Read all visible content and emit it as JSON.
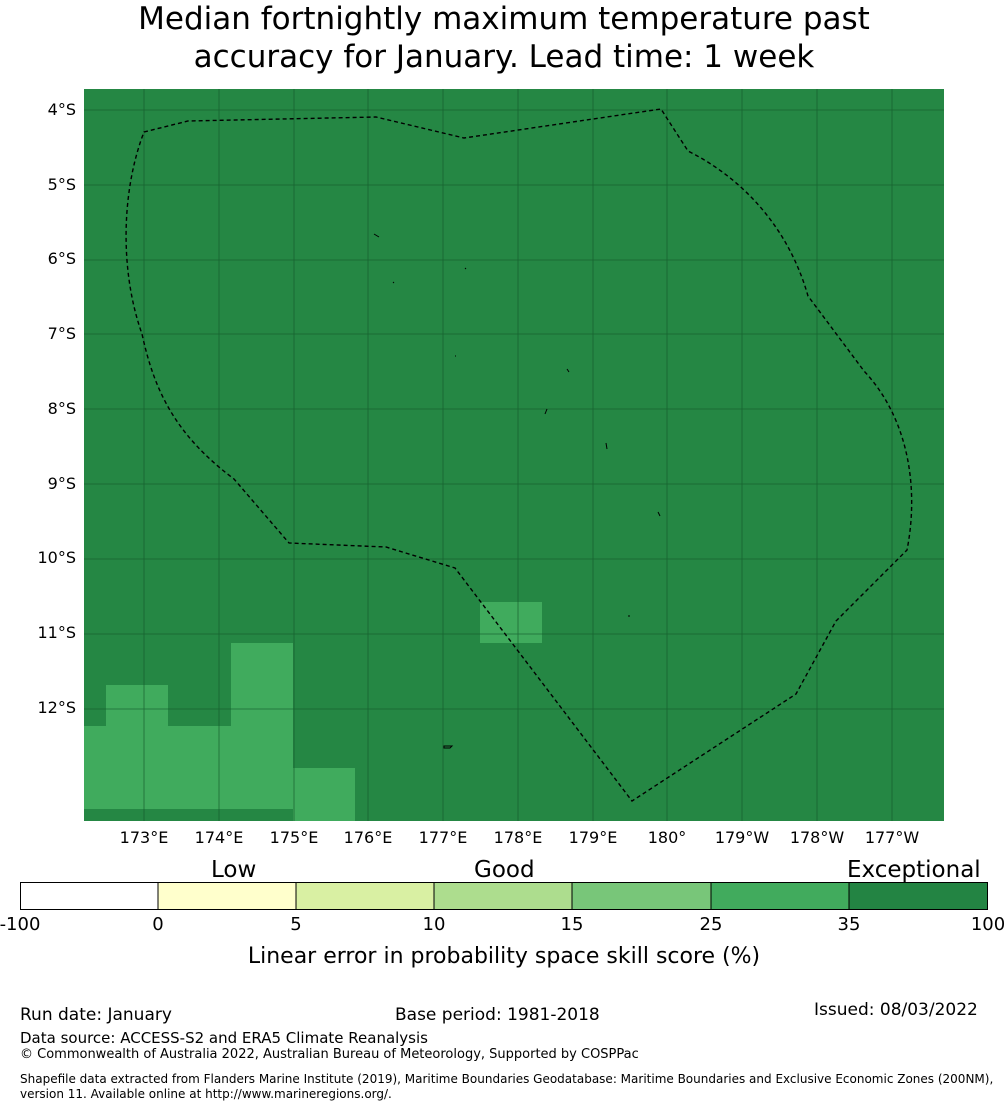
{
  "title": {
    "line1": "Median fortnightly maximum temperature past",
    "line2": "accuracy for January. Lead time: 1 week"
  },
  "map": {
    "lat_labels": [
      "4°S",
      "5°S",
      "6°S",
      "7°S",
      "8°S",
      "9°S",
      "10°S",
      "11°S",
      "12°S"
    ],
    "lon_labels": [
      "173°E",
      "174°E",
      "175°E",
      "176°E",
      "177°E",
      "178°E",
      "179°E",
      "180°",
      "179°W",
      "178°W",
      "177°W"
    ],
    "background_color": "#258744",
    "lighter_patch_color": "#40ab5d"
  },
  "colorbar": {
    "categories": [
      "Low",
      "Good",
      "Exceptional"
    ],
    "ticks": [
      "-100",
      "0",
      "5",
      "10",
      "15",
      "25",
      "35",
      "100"
    ],
    "colors": [
      "#ffffff",
      "#ffffcc",
      "#d9f0a3",
      "#addd8e",
      "#78c679",
      "#41ab5d",
      "#238443"
    ],
    "label": "Linear error in probability space skill score (%)"
  },
  "footer": {
    "run_date": "Run date: January",
    "base_period": "Base period: 1981-2018",
    "issued": "Issued: 08/03/2022",
    "data_source": "Data source: ACCESS-S2 and ERA5 Climate Reanalysis",
    "copyright": "© Commonwealth of Australia 2022, Australian Bureau of Meteorology, Supported by COSPPac",
    "shapefile_line1": "Shapefile data extracted from Flanders Marine Institute (2019), Maritime Boundaries Geodatabase: Maritime Boundaries and Exclusive Economic Zones (200NM),",
    "shapefile_line2": "version 11. Available online at http://www.marineregions.org/."
  }
}
